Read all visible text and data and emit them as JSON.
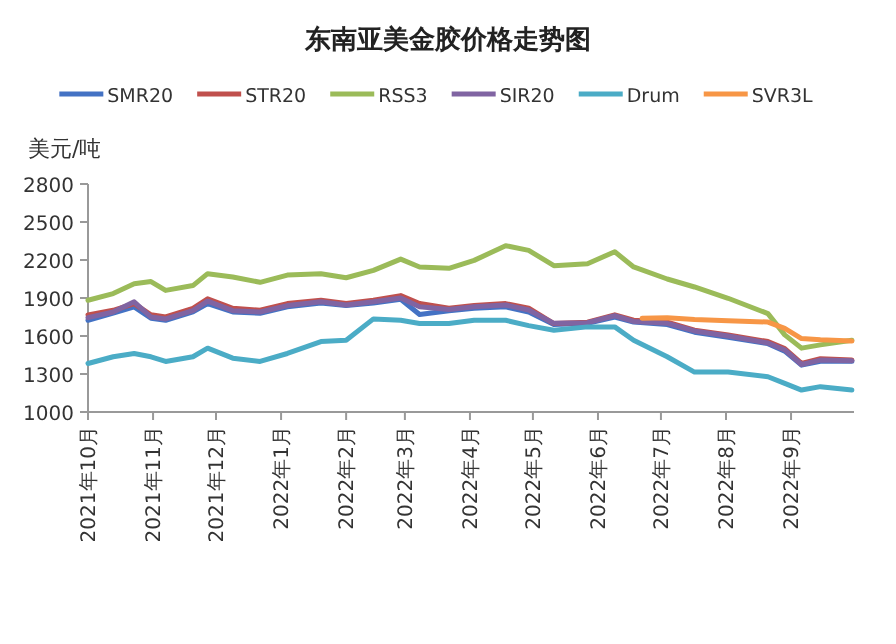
{
  "chart_data": {
    "type": "line",
    "title": "东南亚美金胶价格走势图",
    "ylabel": "美元/吨",
    "legend": "top",
    "x": [
      "2021-10-01",
      "2021-10-13",
      "2021-10-23",
      "2021-10-31",
      "2021-11-07",
      "2021-11-20",
      "2021-11-27",
      "2021-12-09",
      "2021-12-22",
      "2022-01-04",
      "2022-01-20",
      "2022-02-01",
      "2022-02-14",
      "2022-02-27",
      "2022-03-08",
      "2022-03-22",
      "2022-04-03",
      "2022-04-18",
      "2022-04-29",
      "2022-05-11",
      "2022-05-27",
      "2022-06-09",
      "2022-06-18",
      "2022-07-04",
      "2022-07-17",
      "2022-08-02",
      "2022-08-21",
      "2022-08-29",
      "2022-09-06",
      "2022-09-15",
      "2022-09-30"
    ],
    "series": [
      {
        "name": "SMR20",
        "color": "#4472c4",
        "values": [
          1724,
          1780,
          1830,
          1740,
          1724,
          1790,
          1856,
          1790,
          1780,
          1830,
          1860,
          1840,
          1860,
          1890,
          1770,
          1800,
          1820,
          1830,
          1790,
          1690,
          1700,
          1750,
          1710,
          1690,
          1630,
          1590,
          1540,
          1480,
          1370,
          1400,
          1400
        ]
      },
      {
        "name": "STR20",
        "color": "#c0504d",
        "values": [
          1767,
          1803,
          1856,
          1767,
          1750,
          1819,
          1893,
          1819,
          1803,
          1856,
          1882,
          1856,
          1882,
          1919,
          1856,
          1819,
          1840,
          1856,
          1819,
          1698,
          1709,
          1767,
          1725,
          1709,
          1646,
          1609,
          1556,
          1500,
          1383,
          1420,
          1410
        ]
      },
      {
        "name": "RSS3",
        "color": "#9bbb59",
        "values": [
          1882,
          1935,
          2013,
          2030,
          1960,
          1998,
          2092,
          2066,
          2024,
          2081,
          2092,
          2060,
          2118,
          2207,
          2145,
          2134,
          2197,
          2313,
          2276,
          2155,
          2171,
          2265,
          2145,
          2050,
          1987,
          1898,
          1777,
          1609,
          1504,
          1530,
          1567
        ]
      },
      {
        "name": "SIR20",
        "color": "#8064a2",
        "values": [
          1745,
          1790,
          1870,
          1750,
          1735,
          1800,
          1875,
          1800,
          1790,
          1840,
          1870,
          1845,
          1870,
          1900,
          1830,
          1810,
          1830,
          1845,
          1805,
          1700,
          1705,
          1760,
          1715,
          1700,
          1640,
          1600,
          1545,
          1490,
          1375,
          1410,
          1405
        ]
      },
      {
        "name": "Drum",
        "color": "#4bacc6",
        "values": [
          1383,
          1436,
          1462,
          1436,
          1399,
          1436,
          1504,
          1425,
          1399,
          1462,
          1556,
          1567,
          1735,
          1724,
          1698,
          1698,
          1724,
          1724,
          1682,
          1646,
          1672,
          1672,
          1567,
          1436,
          1315,
          1315,
          1278,
          1226,
          1173,
          1200,
          1173
        ]
      },
      {
        "name": "SVR3L",
        "color": "#f79646",
        "x": [
          "2022-06-22",
          "2022-07-04",
          "2022-07-17",
          "2022-08-02",
          "2022-08-21",
          "2022-08-29",
          "2022-09-06",
          "2022-09-15",
          "2022-09-30"
        ],
        "values": [
          1740,
          1745,
          1730,
          1720,
          1710,
          1660,
          1580,
          1570,
          1560
        ]
      }
    ],
    "xlim": [
      "2021-10-01",
      "2022-10-01"
    ],
    "xticks": [
      {
        "value": "2021-10-01",
        "label": "2021年10月"
      },
      {
        "value": "2021-11-01",
        "label": "2021年11月"
      },
      {
        "value": "2021-12-01",
        "label": "2021年12月"
      },
      {
        "value": "2022-01-01",
        "label": "2022年1月"
      },
      {
        "value": "2022-02-01",
        "label": "2022年2月"
      },
      {
        "value": "2022-03-01",
        "label": "2022年3月"
      },
      {
        "value": "2022-04-01",
        "label": "2022年4月"
      },
      {
        "value": "2022-05-01",
        "label": "2022年5月"
      },
      {
        "value": "2022-06-01",
        "label": "2022年6月"
      },
      {
        "value": "2022-07-01",
        "label": "2022年7月"
      },
      {
        "value": "2022-08-01",
        "label": "2022年8月"
      },
      {
        "value": "2022-09-01",
        "label": "2022年9月"
      }
    ],
    "ylim": [
      1000,
      2800
    ],
    "yticks": [
      1000,
      1300,
      1600,
      1900,
      2200,
      2500,
      2800
    ]
  }
}
